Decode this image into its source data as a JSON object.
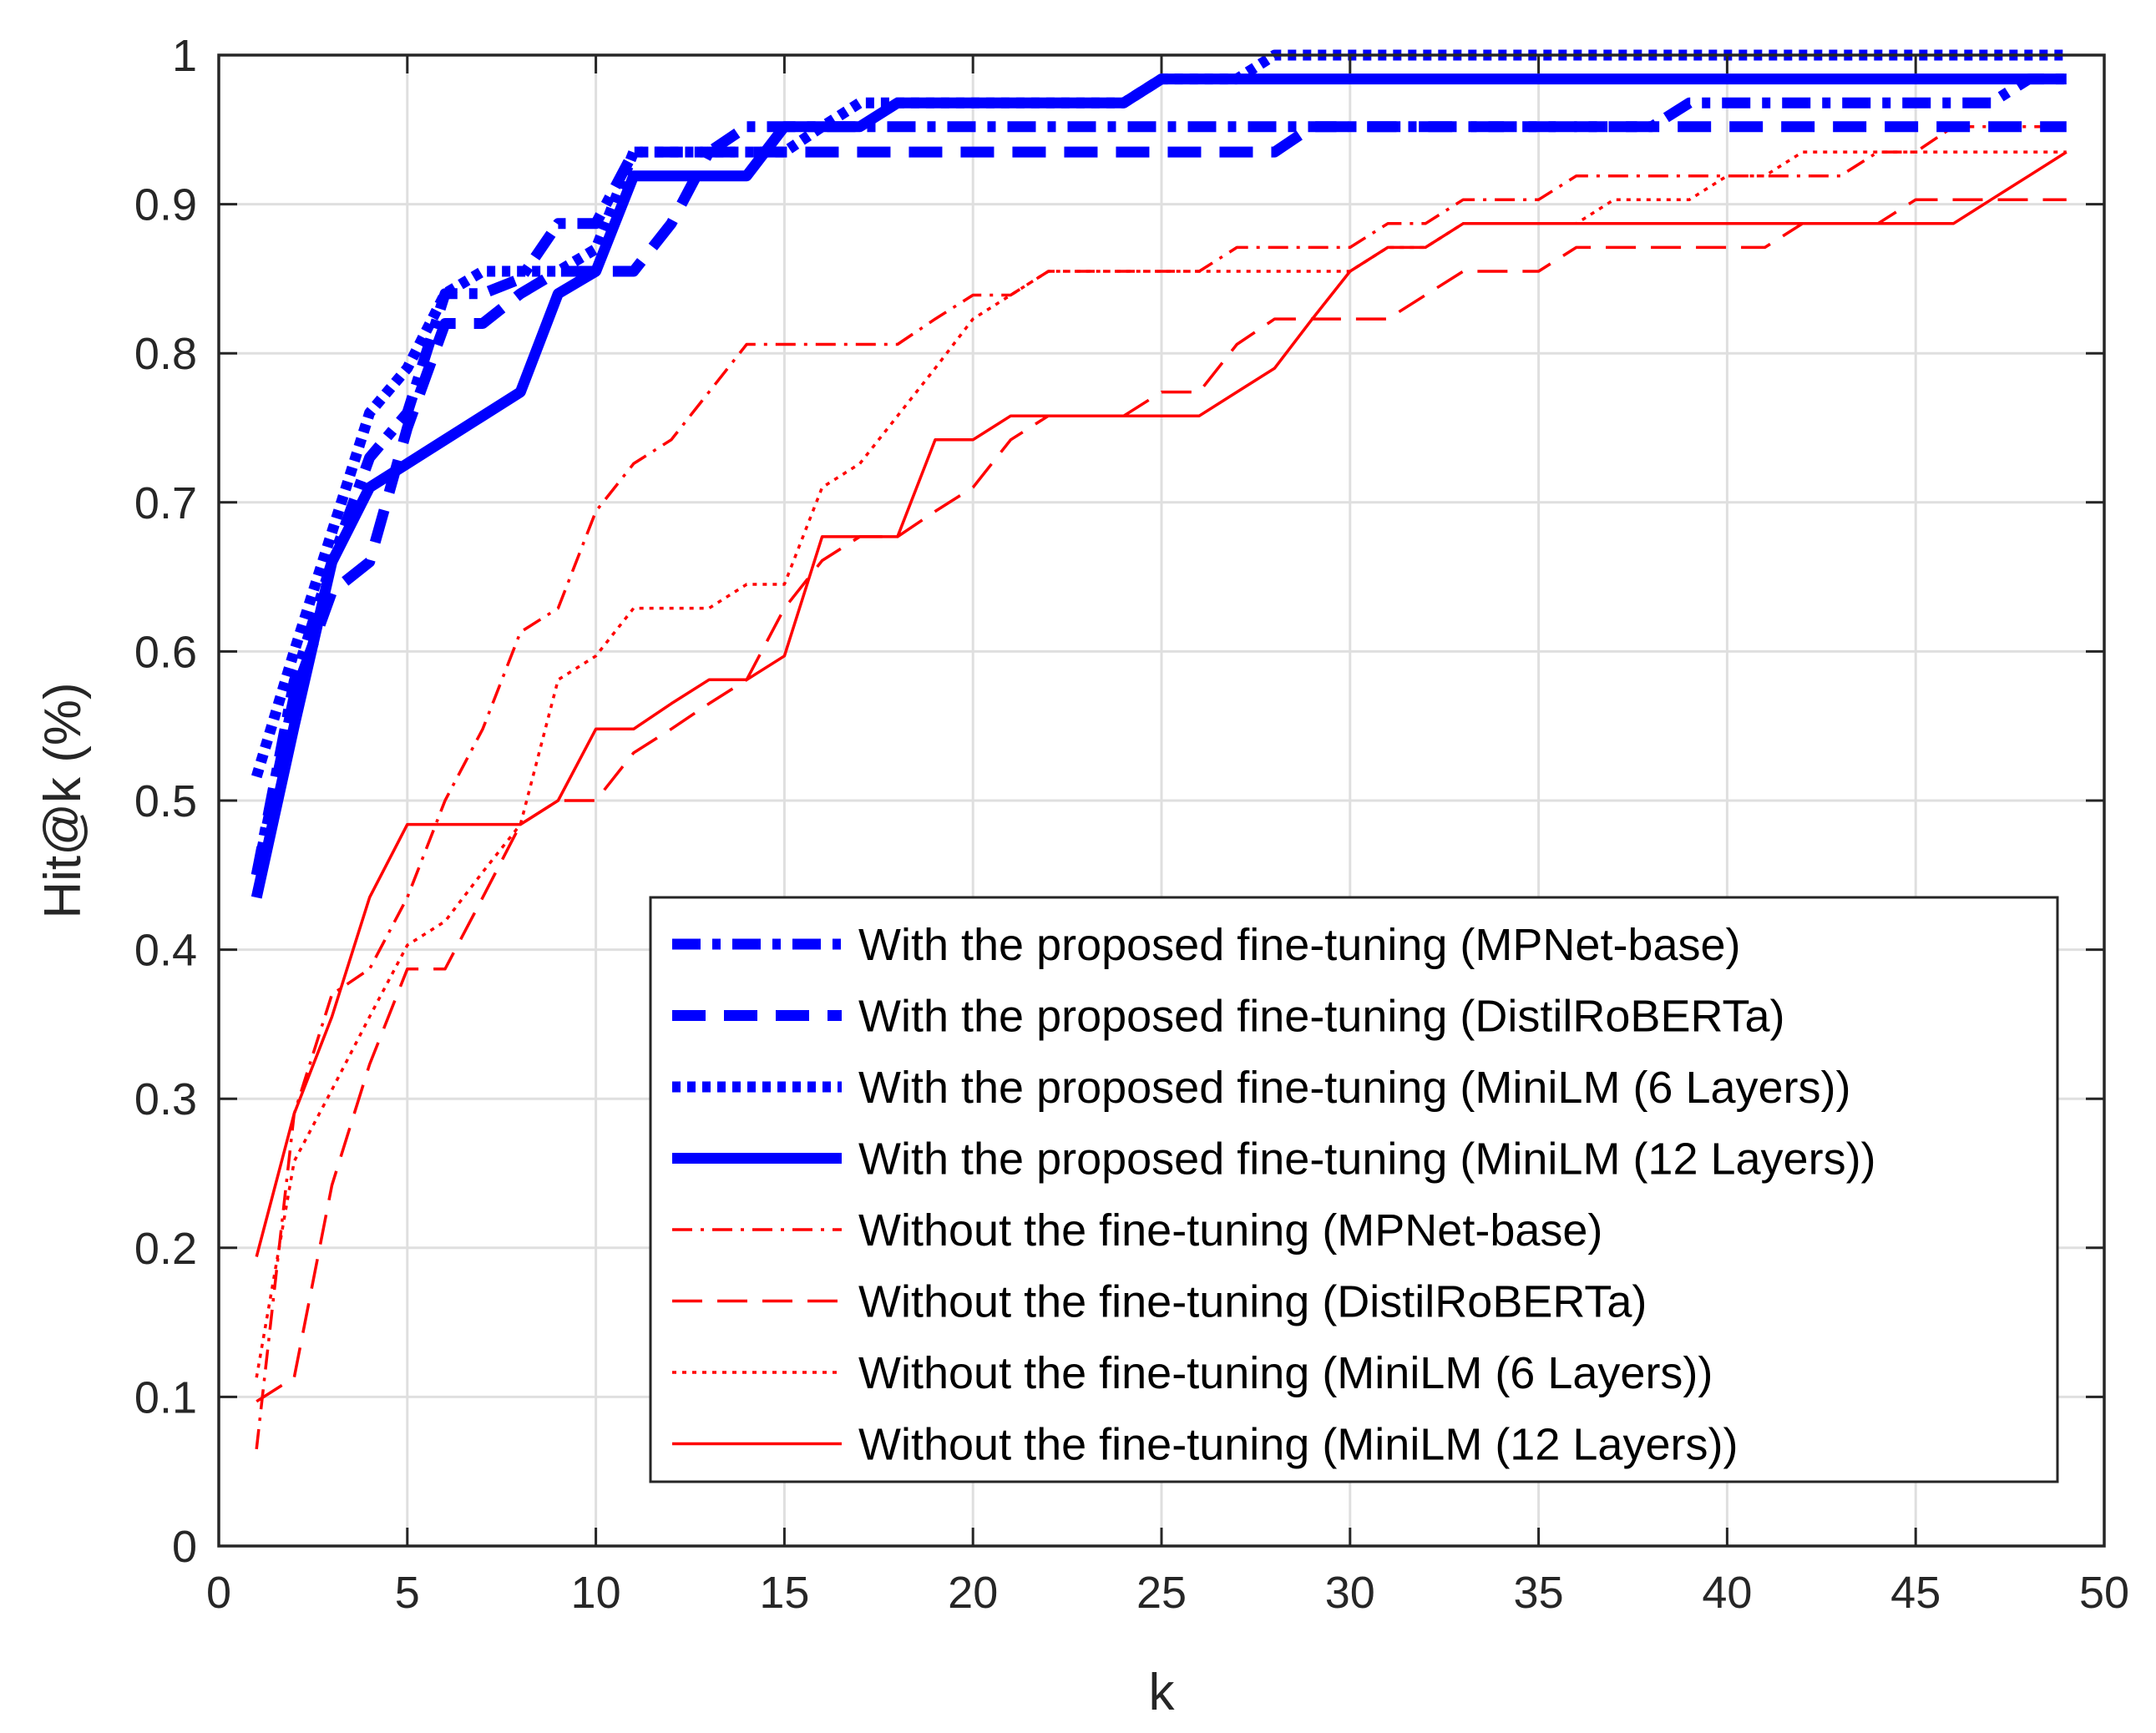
{
  "chart_data": {
    "type": "line",
    "title": "",
    "xlabel": "k",
    "ylabel": "Hit@k (%)",
    "xlim": [
      0,
      50
    ],
    "ylim": [
      0,
      1
    ],
    "xticks": [
      0,
      5,
      10,
      15,
      20,
      25,
      30,
      35,
      40,
      45,
      50
    ],
    "yticks": [
      0,
      0.1,
      0.2,
      0.3,
      0.4,
      0.5,
      0.6,
      0.7,
      0.8,
      0.9,
      1
    ],
    "xtick_labels": [
      "0",
      "5",
      "10",
      "15",
      "20",
      "25",
      "30",
      "35",
      "40",
      "45",
      "50"
    ],
    "ytick_labels": [
      "0",
      "0.1",
      "0.2",
      "0.3",
      "0.4",
      "0.5",
      "0.6",
      "0.7",
      "0.8",
      "0.9",
      "1"
    ],
    "grid": true,
    "legend_position": "bottom-right",
    "series": [
      {
        "name": "With the proposed fine-tuning (MPNet-base)",
        "color": "#0000ff",
        "style": "dashdot",
        "weight": "thick",
        "x": [
          1,
          2,
          3,
          4,
          5,
          6,
          7,
          8,
          9,
          10,
          11,
          12,
          13,
          14,
          15,
          16,
          17,
          18,
          19,
          20,
          21,
          22,
          23,
          24,
          25,
          26,
          27,
          28,
          29,
          30,
          31,
          32,
          33,
          34,
          35,
          36,
          37,
          38,
          39,
          40,
          41,
          42,
          43,
          44,
          45,
          46,
          47,
          48,
          49
        ],
        "y": [
          0.45,
          0.58,
          0.66,
          0.73,
          0.76,
          0.84,
          0.84,
          0.85,
          0.887,
          0.887,
          0.935,
          0.935,
          0.935,
          0.952,
          0.952,
          0.952,
          0.952,
          0.952,
          0.952,
          0.952,
          0.952,
          0.952,
          0.952,
          0.952,
          0.952,
          0.952,
          0.952,
          0.952,
          0.952,
          0.952,
          0.952,
          0.952,
          0.952,
          0.952,
          0.952,
          0.952,
          0.952,
          0.952,
          0.968,
          0.968,
          0.968,
          0.968,
          0.968,
          0.968,
          0.968,
          0.968,
          0.968,
          0.984,
          0.984
        ]
      },
      {
        "name": "With the proposed fine-tuning (DistilRoBERTa)",
        "color": "#0000ff",
        "style": "dashed",
        "weight": "thick",
        "x": [
          1,
          2,
          3,
          4,
          5,
          6,
          7,
          8,
          9,
          10,
          11,
          12,
          13,
          14,
          15,
          16,
          17,
          18,
          19,
          20,
          21,
          22,
          23,
          24,
          25,
          26,
          27,
          28,
          29,
          30,
          31,
          32,
          33,
          34,
          35,
          36,
          37,
          38,
          39,
          40,
          41,
          42,
          43,
          44,
          45,
          46,
          47,
          48,
          49
        ],
        "y": [
          0.45,
          0.57,
          0.64,
          0.66,
          0.75,
          0.82,
          0.82,
          0.84,
          0.855,
          0.855,
          0.855,
          0.887,
          0.935,
          0.935,
          0.935,
          0.935,
          0.935,
          0.935,
          0.935,
          0.935,
          0.935,
          0.935,
          0.935,
          0.935,
          0.935,
          0.935,
          0.935,
          0.935,
          0.952,
          0.952,
          0.952,
          0.952,
          0.952,
          0.952,
          0.952,
          0.952,
          0.952,
          0.952,
          0.952,
          0.952,
          0.952,
          0.952,
          0.952,
          0.952,
          0.952,
          0.952,
          0.952,
          0.952,
          0.952
        ]
      },
      {
        "name": "With the proposed fine-tuning (MiniLM (6 Layers))",
        "color": "#0000ff",
        "style": "dotted",
        "weight": "thick",
        "x": [
          1,
          2,
          3,
          4,
          5,
          6,
          7,
          8,
          9,
          10,
          11,
          12,
          13,
          14,
          15,
          16,
          17,
          18,
          19,
          20,
          21,
          22,
          23,
          24,
          25,
          26,
          27,
          28,
          29,
          30,
          31,
          32,
          33,
          34,
          35,
          36,
          37,
          38,
          39,
          40,
          41,
          42,
          43,
          44,
          45,
          46,
          47,
          48,
          49
        ],
        "y": [
          0.516,
          0.6,
          0.68,
          0.76,
          0.79,
          0.84,
          0.855,
          0.855,
          0.855,
          0.87,
          0.935,
          0.935,
          0.935,
          0.935,
          0.935,
          0.952,
          0.968,
          0.968,
          0.968,
          0.968,
          0.968,
          0.968,
          0.968,
          0.968,
          0.984,
          0.984,
          0.984,
          1,
          1,
          1,
          1,
          1,
          1,
          1,
          1,
          1,
          1,
          1,
          1,
          1,
          1,
          1,
          1,
          1,
          1,
          1,
          1,
          1,
          1
        ]
      },
      {
        "name": "With the proposed fine-tuning (MiniLM (12 Layers))",
        "color": "#0000ff",
        "style": "solid",
        "weight": "thick",
        "x": [
          1,
          2,
          3,
          4,
          5,
          6,
          7,
          8,
          9,
          10,
          11,
          12,
          13,
          14,
          15,
          16,
          17,
          18,
          19,
          20,
          21,
          22,
          23,
          24,
          25,
          26,
          27,
          28,
          29,
          30,
          31,
          32,
          33,
          34,
          35,
          36,
          37,
          38,
          39,
          40,
          41,
          42,
          43,
          44,
          45,
          46,
          47,
          48,
          49
        ],
        "y": [
          0.435,
          0.55,
          0.66,
          0.71,
          0.726,
          0.742,
          0.758,
          0.774,
          0.84,
          0.855,
          0.919,
          0.919,
          0.919,
          0.919,
          0.952,
          0.952,
          0.952,
          0.968,
          0.968,
          0.968,
          0.968,
          0.968,
          0.968,
          0.968,
          0.984,
          0.984,
          0.984,
          0.984,
          0.984,
          0.984,
          0.984,
          0.984,
          0.984,
          0.984,
          0.984,
          0.984,
          0.984,
          0.984,
          0.984,
          0.984,
          0.984,
          0.984,
          0.984,
          0.984,
          0.984,
          0.984,
          0.984,
          0.984,
          0.984
        ]
      },
      {
        "name": "Without the fine-tuning (MPNet-base)",
        "color": "#ff0000",
        "style": "dashdot",
        "weight": "thin",
        "x": [
          1,
          2,
          3,
          4,
          5,
          6,
          7,
          8,
          9,
          10,
          11,
          12,
          13,
          14,
          15,
          16,
          17,
          18,
          19,
          20,
          21,
          22,
          23,
          24,
          25,
          26,
          27,
          28,
          29,
          30,
          31,
          32,
          33,
          34,
          35,
          36,
          37,
          38,
          39,
          40,
          41,
          42,
          43,
          44,
          45,
          46,
          47,
          48,
          49
        ],
        "y": [
          0.065,
          0.29,
          0.37,
          0.387,
          0.435,
          0.5,
          0.548,
          0.613,
          0.629,
          0.694,
          0.726,
          0.742,
          0.774,
          0.806,
          0.806,
          0.806,
          0.806,
          0.806,
          0.823,
          0.839,
          0.839,
          0.855,
          0.855,
          0.855,
          0.855,
          0.855,
          0.871,
          0.871,
          0.871,
          0.871,
          0.887,
          0.887,
          0.903,
          0.903,
          0.903,
          0.919,
          0.919,
          0.919,
          0.919,
          0.919,
          0.919,
          0.919,
          0.919,
          0.935,
          0.935,
          0.952,
          0.952,
          0.952,
          0.952
        ]
      },
      {
        "name": "Without the fine-tuning (DistilRoBERTa)",
        "color": "#ff0000",
        "style": "dashed",
        "weight": "thin",
        "x": [
          1,
          2,
          3,
          4,
          5,
          6,
          7,
          8,
          9,
          10,
          11,
          12,
          13,
          14,
          15,
          16,
          17,
          18,
          19,
          20,
          21,
          22,
          23,
          24,
          25,
          26,
          27,
          28,
          29,
          30,
          31,
          32,
          33,
          34,
          35,
          36,
          37,
          38,
          39,
          40,
          41,
          42,
          43,
          44,
          45,
          46,
          47,
          48,
          49
        ],
        "y": [
          0.097,
          0.113,
          0.242,
          0.323,
          0.387,
          0.387,
          0.435,
          0.484,
          0.5,
          0.5,
          0.532,
          0.548,
          0.565,
          0.581,
          0.629,
          0.661,
          0.677,
          0.677,
          0.694,
          0.71,
          0.742,
          0.758,
          0.758,
          0.758,
          0.774,
          0.774,
          0.806,
          0.823,
          0.823,
          0.823,
          0.823,
          0.839,
          0.855,
          0.855,
          0.855,
          0.871,
          0.871,
          0.871,
          0.871,
          0.871,
          0.871,
          0.887,
          0.887,
          0.887,
          0.903,
          0.903,
          0.903,
          0.903,
          0.903
        ]
      },
      {
        "name": "Without the fine-tuning (MiniLM (6 Layers))",
        "color": "#ff0000",
        "style": "dotted",
        "weight": "thin",
        "x": [
          1,
          2,
          3,
          4,
          5,
          6,
          7,
          8,
          9,
          10,
          11,
          12,
          13,
          14,
          15,
          16,
          17,
          18,
          19,
          20,
          21,
          22,
          23,
          24,
          25,
          26,
          27,
          28,
          29,
          30,
          31,
          32,
          33,
          34,
          35,
          36,
          37,
          38,
          39,
          40,
          41,
          42,
          43,
          44,
          45,
          46,
          47,
          48,
          49
        ],
        "y": [
          0.113,
          0.258,
          0.306,
          0.355,
          0.403,
          0.419,
          0.452,
          0.484,
          0.581,
          0.597,
          0.629,
          0.629,
          0.629,
          0.645,
          0.645,
          0.71,
          0.726,
          0.758,
          0.79,
          0.823,
          0.839,
          0.855,
          0.855,
          0.855,
          0.855,
          0.855,
          0.855,
          0.855,
          0.855,
          0.855,
          0.871,
          0.871,
          0.887,
          0.887,
          0.887,
          0.887,
          0.903,
          0.903,
          0.903,
          0.919,
          0.919,
          0.935,
          0.935,
          0.935,
          0.935,
          0.935,
          0.935,
          0.935,
          0.935
        ]
      },
      {
        "name": "Without the fine-tuning (MiniLM (12 Layers))",
        "color": "#ff0000",
        "style": "solid",
        "weight": "thin",
        "x": [
          1,
          2,
          3,
          4,
          5,
          6,
          7,
          8,
          9,
          10,
          11,
          12,
          13,
          14,
          15,
          16,
          17,
          18,
          19,
          20,
          21,
          22,
          23,
          24,
          25,
          26,
          27,
          28,
          29,
          30,
          31,
          32,
          33,
          34,
          35,
          36,
          37,
          38,
          39,
          40,
          41,
          42,
          43,
          44,
          45,
          46,
          47,
          48,
          49
        ],
        "y": [
          0.194,
          0.29,
          0.355,
          0.435,
          0.484,
          0.484,
          0.484,
          0.484,
          0.5,
          0.548,
          0.548,
          0.565,
          0.581,
          0.581,
          0.597,
          0.677,
          0.677,
          0.677,
          0.742,
          0.742,
          0.758,
          0.758,
          0.758,
          0.758,
          0.758,
          0.758,
          0.774,
          0.79,
          0.823,
          0.855,
          0.871,
          0.871,
          0.887,
          0.887,
          0.887,
          0.887,
          0.887,
          0.887,
          0.887,
          0.887,
          0.887,
          0.887,
          0.887,
          0.887,
          0.887,
          0.887,
          0.903,
          0.919,
          0.935
        ]
      }
    ]
  }
}
